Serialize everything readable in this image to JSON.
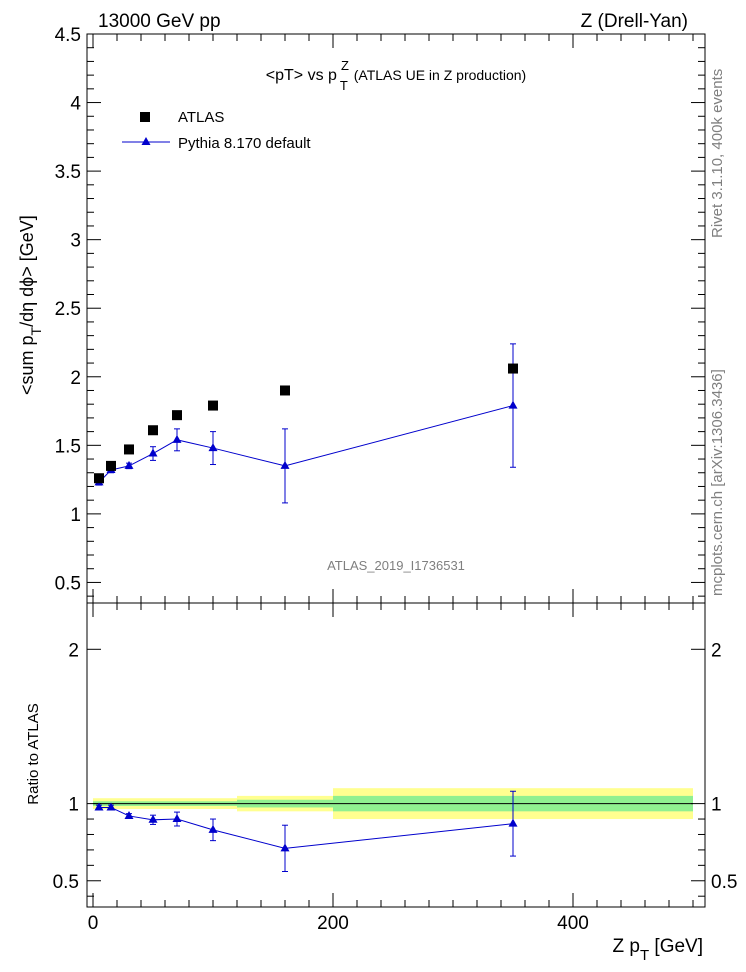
{
  "header": {
    "left": "13000 GeV pp",
    "right": "Z (Drell-Yan)"
  },
  "side_text": {
    "upper": "Rivet 3.1.10,  400k events",
    "lower": "mcplots.cern.ch [arXiv:1306.3436]"
  },
  "chart_data": [
    {
      "type": "scatter",
      "panel": "main",
      "title": "<pT> vs pTZ (ATLAS UE in Z production)",
      "title_parts": {
        "a": "<pT> vs p",
        "sup": "Z",
        "sub": "T",
        "b": " (ATLAS UE in Z production)"
      },
      "ylabel": "<sum pT/dη dϕ> [GeV]",
      "ylabel_parts": {
        "a": "<sum p",
        "sub": "T",
        "b": "/dη dϕ> [GeV]"
      },
      "xlim": [
        -5,
        510
      ],
      "ylim": [
        0.35,
        4.5
      ],
      "yticks": [
        0.5,
        1,
        1.5,
        2,
        2.5,
        3,
        3.5,
        4,
        4.5
      ],
      "ytick_labels": [
        "0.5",
        "1",
        "1.5",
        "2",
        "2.5",
        "3",
        "3.5",
        "4",
        "4.5"
      ],
      "watermark": "ATLAS_2019_I1736531",
      "legend_position": "top-left",
      "series": [
        {
          "name": "ATLAS",
          "marker": "square",
          "color": "#000000",
          "x": [
            5,
            15,
            30,
            50,
            70,
            100,
            160,
            350
          ],
          "y": [
            1.26,
            1.35,
            1.47,
            1.61,
            1.72,
            1.79,
            1.9,
            2.06
          ]
        },
        {
          "name": "Pythia 8.170 default",
          "marker": "triangle",
          "color": "#0000cc",
          "x": [
            5,
            15,
            30,
            50,
            70,
            100,
            160,
            350
          ],
          "y": [
            1.23,
            1.32,
            1.35,
            1.44,
            1.54,
            1.48,
            1.35,
            1.79
          ],
          "err": [
            0.02,
            0.02,
            0.02,
            0.05,
            0.08,
            0.12,
            0.27,
            0.45
          ]
        }
      ]
    },
    {
      "type": "scatter",
      "panel": "ratio",
      "xlabel": "Z pT [GeV]",
      "xlabel_parts": {
        "a": "Z p",
        "sub": "T",
        "b": " [GeV]"
      },
      "ylabel": "Ratio to ATLAS",
      "xlim": [
        -5,
        510
      ],
      "ylim": [
        0.33,
        2.3
      ],
      "xticks": [
        0,
        200,
        400
      ],
      "xtick_labels": [
        "0",
        "200",
        "400"
      ],
      "yticks": [
        0.5,
        1,
        2
      ],
      "ytick_labels": [
        "0.5",
        "1",
        "2"
      ],
      "bands": [
        {
          "x0": 0,
          "x1": 120,
          "stat": 0.015,
          "total": 0.035
        },
        {
          "x0": 120,
          "x1": 200,
          "stat": 0.025,
          "total": 0.05
        },
        {
          "x0": 200,
          "x1": 500,
          "stat": 0.05,
          "total": 0.1
        }
      ],
      "band_colors": {
        "stat": "#90f090",
        "total": "#ffff90"
      },
      "series": [
        {
          "name": "Pythia 8.170 default",
          "color": "#0000cc",
          "x": [
            5,
            15,
            30,
            50,
            70,
            100,
            160,
            350
          ],
          "y": [
            0.975,
            0.975,
            0.92,
            0.895,
            0.9,
            0.83,
            0.71,
            0.87
          ],
          "err": [
            0.015,
            0.015,
            0.015,
            0.03,
            0.045,
            0.07,
            0.15,
            0.21
          ]
        }
      ]
    }
  ]
}
